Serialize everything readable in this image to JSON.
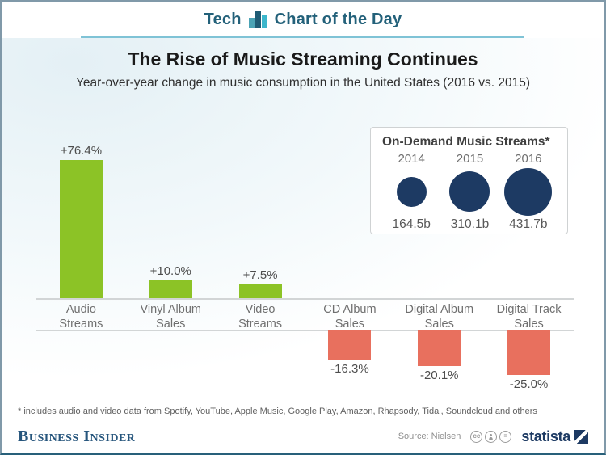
{
  "header": {
    "category_label": "Tech",
    "title": "Chart of the Day"
  },
  "headline": {
    "title": "The Rise of Music Streaming Continues",
    "subtitle": "Year-over-year change in music consumption in the United States (2016 vs. 2015)"
  },
  "chart_data": [
    {
      "type": "bar",
      "title": "Year-over-year change in music consumption in the United States (2016 vs. 2015)",
      "categories": [
        [
          "Audio",
          "Streams"
        ],
        [
          "Vinyl Album",
          "Sales"
        ],
        [
          "Video",
          "Streams"
        ],
        [
          "CD Album",
          "Sales"
        ],
        [
          "Digital Album",
          "Sales"
        ],
        [
          "Digital Track",
          "Sales"
        ]
      ],
      "values": [
        76.4,
        10.0,
        7.5,
        -16.3,
        -20.1,
        -25.0
      ],
      "value_labels": [
        "+76.4%",
        "+10.0%",
        "+7.5%",
        "-16.3%",
        "-20.1%",
        "-25.0%"
      ],
      "unit": "%",
      "ylim": [
        -25,
        76.4
      ],
      "gridlines": false,
      "baseline": 0,
      "colors": {
        "positive": "#8cc326",
        "negative": "#e8705e"
      }
    },
    {
      "type": "bubble",
      "title": "On-Demand Music Streams*",
      "categories": [
        "2014",
        "2015",
        "2016"
      ],
      "values": [
        164.5,
        310.1,
        431.7
      ],
      "value_labels": [
        "164.5b",
        "310.1b",
        "431.7b"
      ],
      "unit": "billions of streams",
      "color": "#1d3a63"
    }
  ],
  "footnote": "* includes audio and video data from Spotify, YouTube, Apple Music, Google Play, Amazon, Rhapsody, Tidal, Soundcloud and others",
  "footer": {
    "publisher": "Business Insider",
    "source_label": "Source: Nielsen",
    "cc_label": "cc",
    "nd_label": "=",
    "statista_label": "statista"
  }
}
